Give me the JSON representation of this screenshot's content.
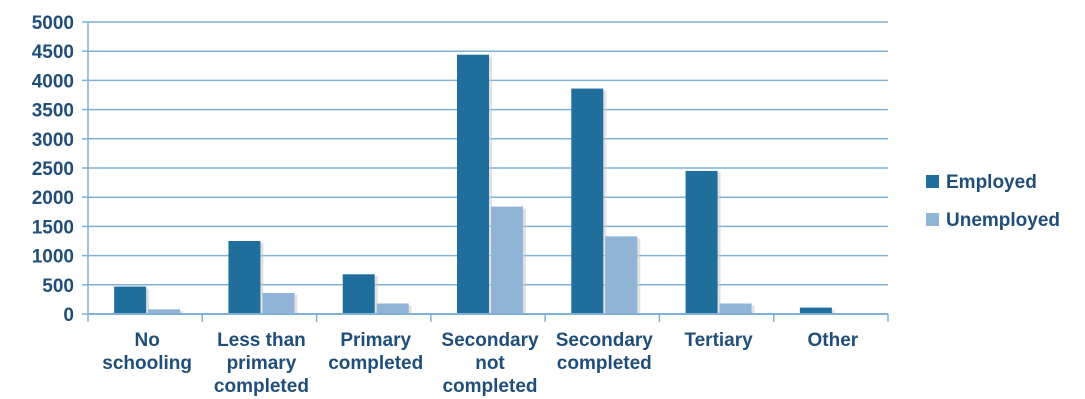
{
  "chart_data": {
    "type": "bar",
    "categories": [
      [
        "No",
        "schooling"
      ],
      [
        "Less than",
        "primary",
        "completed"
      ],
      [
        "Primary",
        "completed"
      ],
      [
        "Secondary",
        "not",
        "completed"
      ],
      [
        "Secondary",
        "completed"
      ],
      [
        "Tertiary"
      ],
      [
        "Other"
      ]
    ],
    "series": [
      {
        "name": "Employed",
        "color": "#1f6e9c",
        "values": [
          470,
          1250,
          680,
          4440,
          3860,
          2450,
          110
        ]
      },
      {
        "name": "Unemployed",
        "color": "#8fb4d6",
        "values": [
          80,
          360,
          180,
          1840,
          1330,
          180,
          10
        ]
      }
    ],
    "ylim": [
      0,
      5000
    ],
    "yticks": [
      0,
      500,
      1000,
      1500,
      2000,
      2500,
      3000,
      3500,
      4000,
      4500,
      5000
    ],
    "grid": true,
    "legend": "right"
  }
}
